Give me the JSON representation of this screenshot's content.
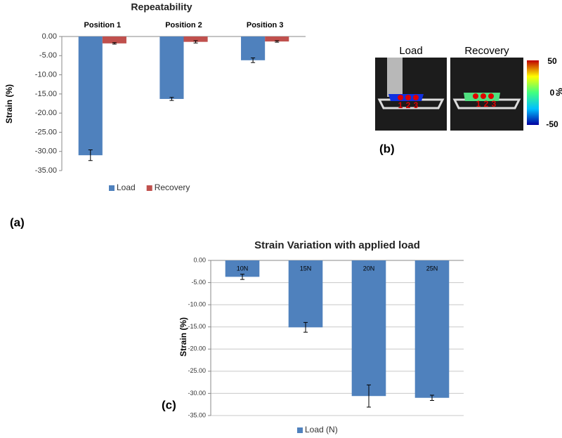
{
  "chart_data": [
    {
      "type": "bar",
      "title": "Repeatability",
      "ylabel": "Strain (%)",
      "categories": [
        "Position 1",
        "Position 2",
        "Position 3"
      ],
      "series": [
        {
          "name": "Load",
          "color": "#4f81bd",
          "values": [
            -31.0,
            -16.3,
            -6.2
          ],
          "errors": [
            1.4,
            0.4,
            0.6
          ]
        },
        {
          "name": "Recovery",
          "color": "#c0504d",
          "values": [
            -1.8,
            -1.4,
            -1.3
          ],
          "errors": [
            0.2,
            0.3,
            0.2
          ]
        }
      ],
      "ylim": [
        -35,
        0
      ],
      "yticks": [
        {
          "value": 0,
          "label": "0.00"
        },
        {
          "value": -5,
          "label": "-5.00"
        },
        {
          "value": -10,
          "label": "-10.00"
        },
        {
          "value": -15,
          "label": "-15.00"
        },
        {
          "value": -20,
          "label": "-20.00"
        },
        {
          "value": -25,
          "label": "-25.00"
        },
        {
          "value": -30,
          "label": "-30.00"
        },
        {
          "value": -35,
          "label": "-35.00"
        }
      ],
      "grid": false,
      "legend": "bottom"
    },
    {
      "type": "bar",
      "title": "Strain Variation with applied load",
      "ylabel": "Strain (%)",
      "categories": [
        "10N",
        "15N",
        "20N",
        "25N"
      ],
      "series": [
        {
          "name": "Load (N)",
          "color": "#4f81bd",
          "values": [
            -3.7,
            -15.1,
            -30.6,
            -31.0
          ],
          "errors": [
            0.6,
            1.1,
            2.5,
            0.6
          ]
        }
      ],
      "ylim": [
        -35,
        0
      ],
      "yticks": [
        {
          "value": 0,
          "label": "0.00"
        },
        {
          "value": -5,
          "label": "-5.00"
        },
        {
          "value": -10,
          "label": "-10.00"
        },
        {
          "value": -15,
          "label": "-15.00"
        },
        {
          "value": -20,
          "label": "-20.00"
        },
        {
          "value": -25,
          "label": "-25.00"
        },
        {
          "value": -30,
          "label": "-30.00"
        },
        {
          "value": -35,
          "label": "-35.00"
        }
      ],
      "grid": true,
      "legend": "bottom"
    }
  ],
  "panel_labels": [
    "(a)",
    "(b)",
    "(c)"
  ],
  "image_panel": {
    "titles": [
      "Load",
      "Recovery"
    ],
    "point_labels": [
      "1",
      "2",
      "3"
    ],
    "colorbar": {
      "ticks": [
        50,
        0,
        -50
      ],
      "label": "%"
    }
  }
}
